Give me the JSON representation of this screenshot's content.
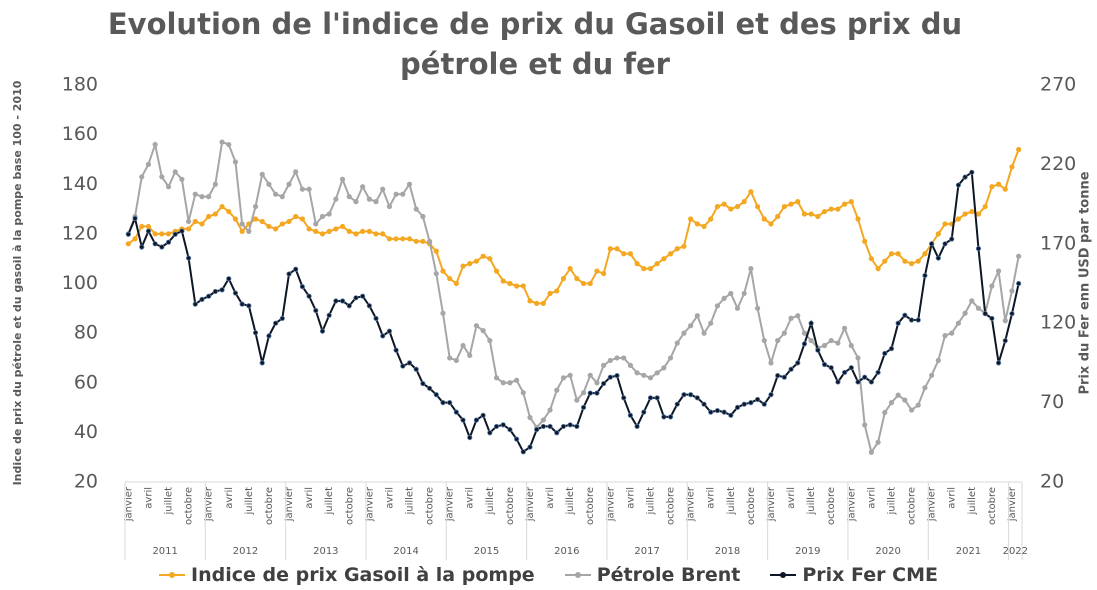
{
  "chart_data": {
    "type": "line",
    "title": "Evolution de l'indice de prix du Gasoil et des prix du pétrole et du fer",
    "y_label": "Indice de prix du pétrole et du gasoil à la pompe base 100 - 2010",
    "y2_label": "Prix du Fer enn USD par tonne",
    "categories": [
      "janvier",
      null,
      null,
      "avril",
      null,
      null,
      "juillet",
      null,
      null,
      "octobre",
      null,
      null,
      "janvier",
      null,
      null,
      "avril",
      null,
      null,
      "juillet",
      null,
      null,
      "octobre",
      null,
      null,
      "janvier",
      null,
      null,
      "avril",
      null,
      null,
      "juillet",
      null,
      null,
      "octobre",
      null,
      null,
      "janvier",
      null,
      null,
      "avril",
      null,
      null,
      "juillet",
      null,
      null,
      "octobre",
      null,
      null,
      "janvier",
      null,
      null,
      "avril",
      null,
      null,
      "juillet",
      null,
      null,
      "octobre",
      null,
      null,
      "janvier",
      null,
      null,
      "avril",
      null,
      null,
      "juillet",
      null,
      null,
      "octobre",
      null,
      null,
      "janvier",
      null,
      null,
      "avril",
      null,
      null,
      "juillet",
      null,
      null,
      "octobre",
      null,
      null,
      "janvier",
      null,
      null,
      "avril",
      null,
      null,
      "juillet",
      null,
      null,
      "octobre",
      null,
      null,
      "janvier",
      null,
      null,
      "avril",
      null,
      null,
      "juillet",
      null,
      null,
      "octobre",
      null,
      null,
      "janvier",
      null,
      null,
      "avril",
      null,
      null,
      "juillet",
      null,
      null,
      "octobre",
      null,
      null,
      "janvier",
      null,
      null,
      "avril",
      null,
      null,
      "juillet",
      null,
      null,
      "octobre",
      null,
      null,
      "janvier",
      null
    ],
    "category_groups": [
      {
        "label": "2011",
        "size": 12
      },
      {
        "label": "2012",
        "size": 12
      },
      {
        "label": "2013",
        "size": 12
      },
      {
        "label": "2014",
        "size": 12
      },
      {
        "label": "2015",
        "size": 12
      },
      {
        "label": "2016",
        "size": 12
      },
      {
        "label": "2017",
        "size": 12
      },
      {
        "label": "2018",
        "size": 12
      },
      {
        "label": "2019",
        "size": 12
      },
      {
        "label": "2020",
        "size": 12
      },
      {
        "label": "2021",
        "size": 12
      },
      {
        "label": "2022",
        "size": 2
      }
    ],
    "ylim": [
      20,
      180
    ],
    "yticks": [
      20,
      40,
      60,
      80,
      100,
      120,
      140,
      160,
      180
    ],
    "y2lim": [
      20,
      270
    ],
    "y2ticks": [
      20,
      70,
      120,
      170,
      220,
      270
    ],
    "grid": false,
    "series": [
      {
        "name": "Indice de prix Gasoil à la pompe",
        "color": "#f4a720",
        "values": [
          116,
          118,
          123,
          123,
          120,
          120,
          120,
          121,
          122,
          122,
          125,
          124,
          127,
          128,
          131,
          129,
          126,
          121,
          124,
          126,
          125,
          123,
          122,
          124,
          125,
          127,
          126,
          122,
          121,
          120,
          121,
          122,
          123,
          121,
          120,
          121,
          121,
          120,
          120,
          118,
          118,
          118,
          118,
          117,
          117,
          116,
          113,
          105,
          102,
          100,
          107,
          108,
          109,
          111,
          110,
          105,
          101,
          100,
          99,
          99,
          93,
          92,
          92,
          96,
          97,
          102,
          106,
          102,
          100,
          100,
          105,
          104,
          114,
          114,
          112,
          112,
          108,
          106,
          106,
          108,
          110,
          112,
          114,
          115,
          126,
          124,
          123,
          126,
          131,
          132,
          130,
          131,
          133,
          137,
          131,
          126,
          124,
          127,
          131,
          132,
          133,
          128,
          128,
          127,
          129,
          130,
          130,
          132,
          133,
          126,
          117,
          110,
          106,
          109,
          112,
          112,
          109,
          108,
          109,
          112,
          116,
          120,
          124,
          124,
          126,
          128,
          129,
          128,
          131,
          139,
          140,
          138,
          147,
          154
        ]
      },
      {
        "name": "Pétrole Brent",
        "color": "#a6a6a6",
        "values": [
          120,
          127,
          143,
          148,
          156,
          143,
          139,
          145,
          142,
          125,
          136,
          135,
          135,
          140,
          157,
          156,
          149,
          124,
          121,
          131,
          144,
          140,
          136,
          135,
          140,
          145,
          138,
          138,
          124,
          127,
          128,
          134,
          142,
          135,
          133,
          139,
          134,
          133,
          138,
          131,
          136,
          136,
          140,
          130,
          127,
          117,
          104,
          88,
          70,
          69,
          75,
          71,
          83,
          81,
          77,
          62,
          60,
          60,
          61,
          56,
          46,
          42,
          45,
          49,
          57,
          62,
          63,
          53,
          56,
          63,
          60,
          67,
          69,
          70,
          70,
          67,
          64,
          63,
          62,
          64,
          66,
          70,
          76,
          80,
          83,
          87,
          80,
          84,
          91,
          94,
          96,
          90,
          96,
          106,
          90,
          77,
          68,
          77,
          80,
          86,
          87,
          80,
          77,
          74,
          75,
          77,
          76,
          82,
          75,
          70,
          43,
          32,
          36,
          48,
          52,
          55,
          53,
          49,
          51,
          58,
          63,
          69,
          79,
          80,
          84,
          88,
          93,
          90,
          88,
          99,
          105,
          85,
          97,
          111
        ]
      },
      {
        "name": "Prix Fer CME",
        "color": "#0d1726",
        "axis": "y2",
        "values": [
          176,
          186,
          168,
          178,
          170,
          168,
          171,
          176,
          178,
          161,
          132,
          135,
          137,
          140,
          141,
          148,
          139,
          132,
          131,
          114,
          95,
          112,
          120,
          123,
          151,
          154,
          143,
          137,
          128,
          115,
          125,
          134,
          134,
          131,
          136,
          137,
          131,
          123,
          112,
          115,
          103,
          93,
          95,
          91,
          82,
          79,
          75,
          70,
          70,
          64,
          59,
          48,
          59,
          62,
          51,
          55,
          56,
          53,
          47,
          39,
          42,
          53,
          55,
          55,
          51,
          55,
          56,
          55,
          67,
          76,
          76,
          82,
          86,
          87,
          73,
          62,
          55,
          64,
          73,
          73,
          61,
          61,
          69,
          75,
          75,
          73,
          69,
          64,
          65,
          64,
          62,
          67,
          69,
          70,
          72,
          69,
          75,
          87,
          86,
          91,
          95,
          107,
          120,
          103,
          94,
          92,
          83,
          89,
          92,
          83,
          86,
          83,
          89,
          101,
          104,
          120,
          125,
          122,
          122,
          150,
          170,
          161,
          170,
          173,
          207,
          212,
          215,
          167,
          126,
          123,
          95,
          109,
          126,
          145
        ]
      }
    ]
  }
}
